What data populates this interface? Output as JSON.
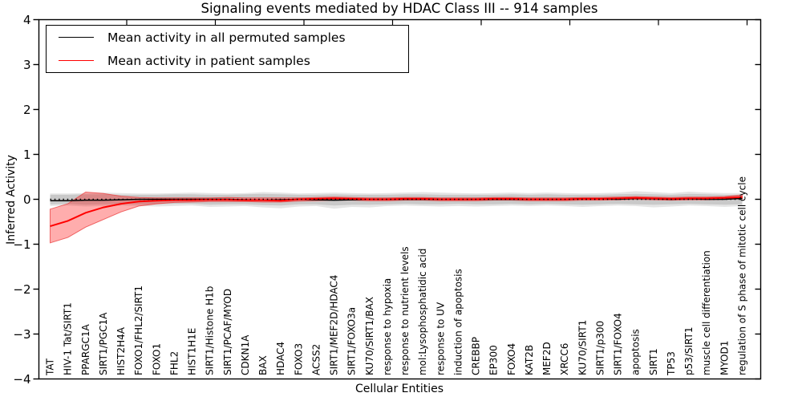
{
  "chart_data": {
    "type": "line",
    "title": "Signaling events mediated by HDAC Class III -- 914 samples",
    "xlabel": "Cellular Entities",
    "ylabel": "Inferred Activity",
    "ylim": [
      -4,
      4
    ],
    "yticks": [
      4,
      3,
      2,
      1,
      0,
      -1,
      -2,
      -3,
      -4
    ],
    "grid": false,
    "legend_position": "upper left",
    "zero_line": {
      "style": "dotted",
      "color": "#000000",
      "y": 0
    },
    "categories": [
      "TAT",
      "HIV-1 Tat/SIRT1",
      "PPARGC1A",
      "SIRT1/PGC1A",
      "HIST2H4A",
      "FOXO1/FHL2/SIRT1",
      "FOXO1",
      "FHL2",
      "HIST1H1E",
      "SIRT1/Histone H1b",
      "SIRT1/PCAF/MYOD",
      "CDKN1A",
      "BAX",
      "HDAC4",
      "FOXO3",
      "ACSS2",
      "SIRT1/MEF2D/HDAC4",
      "SIRT1/FOXO3a",
      "KU70/SIRT1/BAX",
      "response to hypoxia",
      "response to nutrient levels",
      "mol:Lysophosphatidic acid",
      "response to UV",
      "induction of apoptosis",
      "CREBBP",
      "EP300",
      "FOXO4",
      "KAT2B",
      "MEF2D",
      "XRCC6",
      "KU70/SIRT1",
      "SIRT1/p300",
      "SIRT1/FOXO4",
      "apoptosis",
      "SIRT1",
      "TP53",
      "p53/SIRT1",
      "muscle cell differentiation",
      "MYOD1",
      "regulation of S phase of mitotic cell cycle"
    ],
    "series": [
      {
        "name": "Mean activity in all permuted samples",
        "color": "#000000",
        "values": [
          -0.03,
          -0.03,
          -0.02,
          -0.02,
          -0.01,
          0,
          0,
          0,
          0,
          0,
          0,
          -0.01,
          -0.02,
          -0.01,
          0,
          -0.01,
          -0.02,
          -0.01,
          0,
          0,
          0,
          0,
          0,
          0,
          0,
          0,
          0,
          0,
          0,
          0,
          0.01,
          0.01,
          0,
          0.02,
          0.01,
          0,
          0.01,
          0,
          0,
          0.02
        ]
      },
      {
        "name": "Mean activity in patient samples",
        "color": "#ff0000",
        "values": [
          -0.6,
          -0.48,
          -0.3,
          -0.18,
          -0.1,
          -0.05,
          -0.03,
          -0.02,
          -0.02,
          -0.01,
          -0.01,
          -0.02,
          -0.02,
          -0.03,
          0,
          0.01,
          0.02,
          0.01,
          0,
          0,
          0.01,
          0.01,
          0,
          0,
          0,
          0.01,
          0.01,
          0,
          0,
          0,
          0.01,
          0.01,
          0.02,
          0.03,
          0.02,
          0.01,
          0.02,
          0.02,
          0.03,
          0.05
        ]
      }
    ],
    "bands": [
      {
        "name": "permuted-range-outer",
        "color": "rgba(0,0,0,0.10)",
        "edge": "none",
        "upper": [
          0.13,
          0.13,
          0.14,
          0.15,
          0.14,
          0.13,
          0.13,
          0.14,
          0.15,
          0.14,
          0.13,
          0.14,
          0.16,
          0.15,
          0.13,
          0.14,
          0.15,
          0.14,
          0.13,
          0.14,
          0.15,
          0.16,
          0.15,
          0.14,
          0.13,
          0.14,
          0.15,
          0.14,
          0.15,
          0.14,
          0.13,
          0.14,
          0.15,
          0.18,
          0.16,
          0.14,
          0.17,
          0.15,
          0.14,
          0.14
        ],
        "lower": [
          -0.15,
          -0.14,
          -0.16,
          -0.15,
          -0.14,
          -0.15,
          -0.16,
          -0.15,
          -0.14,
          -0.17,
          -0.16,
          -0.15,
          -0.18,
          -0.2,
          -0.16,
          -0.15,
          -0.21,
          -0.17,
          -0.18,
          -0.15,
          -0.14,
          -0.15,
          -0.16,
          -0.15,
          -0.16,
          -0.15,
          -0.14,
          -0.15,
          -0.14,
          -0.15,
          -0.17,
          -0.15,
          -0.14,
          -0.15,
          -0.18,
          -0.16,
          -0.14,
          -0.15,
          -0.17,
          -0.15
        ]
      },
      {
        "name": "permuted-range-inner",
        "color": "rgba(0,0,0,0.12)",
        "edge": "none",
        "upper": [
          0.1,
          0.1,
          0.11,
          0.11,
          0.1,
          0.1,
          0.1,
          0.11,
          0.11,
          0.1,
          0.1,
          0.11,
          0.12,
          0.11,
          0.1,
          0.1,
          0.11,
          0.1,
          0.1,
          0.1,
          0.11,
          0.11,
          0.1,
          0.1,
          0.1,
          0.1,
          0.11,
          0.1,
          0.11,
          0.1,
          0.1,
          0.1,
          0.11,
          0.12,
          0.11,
          0.1,
          0.12,
          0.11,
          0.1,
          0.1
        ],
        "lower": [
          -0.11,
          -0.1,
          -0.12,
          -0.11,
          -0.1,
          -0.11,
          -0.11,
          -0.1,
          -0.1,
          -0.12,
          -0.11,
          -0.11,
          -0.13,
          -0.14,
          -0.11,
          -0.11,
          -0.14,
          -0.12,
          -0.12,
          -0.11,
          -0.1,
          -0.11,
          -0.11,
          -0.1,
          -0.11,
          -0.11,
          -0.1,
          -0.11,
          -0.1,
          -0.11,
          -0.12,
          -0.11,
          -0.1,
          -0.11,
          -0.12,
          -0.11,
          -0.1,
          -0.11,
          -0.12,
          -0.11
        ]
      },
      {
        "name": "patient-range",
        "color": "rgba(255,0,0,0.32)",
        "edge": "rgba(235,60,60,0.75)",
        "upper": [
          -0.22,
          -0.1,
          0.16,
          0.13,
          0.07,
          0.04,
          0.03,
          0.03,
          0.03,
          0.03,
          0.04,
          0.03,
          0.03,
          0.03,
          0.03,
          0.04,
          0.05,
          0.04,
          0.03,
          0.03,
          0.04,
          0.04,
          0.03,
          0.03,
          0.03,
          0.04,
          0.04,
          0.03,
          0.03,
          0.03,
          0.04,
          0.04,
          0.05,
          0.06,
          0.05,
          0.04,
          0.05,
          0.05,
          0.06,
          0.1
        ],
        "lower": [
          -0.97,
          -0.85,
          -0.62,
          -0.45,
          -0.28,
          -0.15,
          -0.1,
          -0.07,
          -0.06,
          -0.05,
          -0.05,
          -0.05,
          -0.06,
          -0.06,
          -0.04,
          -0.03,
          -0.02,
          -0.02,
          -0.03,
          -0.03,
          -0.02,
          -0.02,
          -0.03,
          -0.03,
          -0.03,
          -0.02,
          -0.02,
          -0.03,
          -0.03,
          -0.03,
          -0.02,
          -0.02,
          -0.01,
          0,
          -0.01,
          -0.02,
          -0.01,
          -0.01,
          0,
          0.01
        ]
      }
    ]
  }
}
